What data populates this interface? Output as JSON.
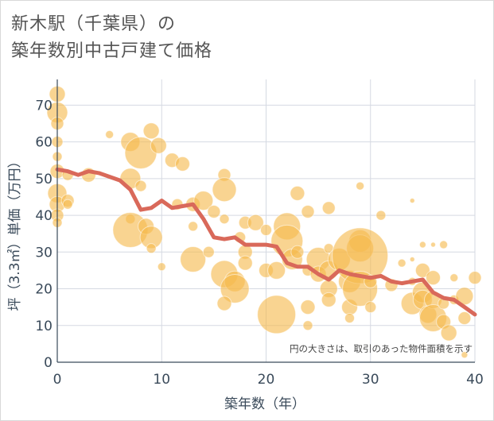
{
  "title": {
    "line1": "新木駅（千葉県）の",
    "line2": "築年数別中古戸建て価格"
  },
  "chart_data": {
    "type": "scatter",
    "xlabel": "築年数（年）",
    "ylabel": "坪（3.3㎡）単価（万円）",
    "xlim": [
      0,
      40
    ],
    "ylim": [
      0,
      77
    ],
    "xticks": [
      0,
      10,
      20,
      30,
      40
    ],
    "yticks": [
      0,
      10,
      20,
      30,
      40,
      50,
      60,
      70
    ],
    "note": "円の大きさは、取引のあった物件面積を示す",
    "colors": {
      "bubble": "#f5b94d",
      "trend": "#d9695a",
      "grid": "#d5d9e2",
      "axis": "#3a4a5a"
    },
    "trend": {
      "x": [
        0,
        1,
        2,
        3,
        4,
        5,
        6,
        7,
        8,
        9,
        10,
        11,
        12,
        13,
        14,
        15,
        16,
        17,
        18,
        19,
        20,
        21,
        22,
        23,
        24,
        25,
        26,
        27,
        28,
        29,
        30,
        31,
        32,
        33,
        34,
        35,
        36,
        37,
        38,
        39,
        40
      ],
      "y": [
        52.5,
        52,
        51,
        52,
        51.5,
        50.5,
        49.5,
        47,
        41.5,
        42,
        44,
        42,
        42.5,
        43,
        39,
        34,
        33.5,
        34,
        32,
        32,
        32,
        31.5,
        27,
        26,
        26,
        24,
        22.5,
        25,
        24,
        23.5,
        23,
        23.5,
        22,
        21.5,
        22,
        22.5,
        19,
        17.5,
        17,
        15,
        13
      ]
    },
    "bubbles": [
      {
        "x": 0,
        "y": 73,
        "r": 10
      },
      {
        "x": 0,
        "y": 68,
        "r": 13
      },
      {
        "x": 0,
        "y": 65,
        "r": 8
      },
      {
        "x": 0,
        "y": 60,
        "r": 7
      },
      {
        "x": 0,
        "y": 56,
        "r": 6
      },
      {
        "x": 0,
        "y": 52,
        "r": 9
      },
      {
        "x": 0,
        "y": 46,
        "r": 12
      },
      {
        "x": 0,
        "y": 43,
        "r": 10
      },
      {
        "x": 0,
        "y": 40,
        "r": 8
      },
      {
        "x": 0,
        "y": 38,
        "r": 6
      },
      {
        "x": 1,
        "y": 51,
        "r": 7
      },
      {
        "x": 1,
        "y": 44,
        "r": 8
      },
      {
        "x": 1,
        "y": 43,
        "r": 6
      },
      {
        "x": 3,
        "y": 51,
        "r": 9
      },
      {
        "x": 5,
        "y": 62,
        "r": 5
      },
      {
        "x": 7,
        "y": 60,
        "r": 12
      },
      {
        "x": 8,
        "y": 57,
        "r": 20
      },
      {
        "x": 7,
        "y": 50,
        "r": 13
      },
      {
        "x": 8,
        "y": 48,
        "r": 7
      },
      {
        "x": 7,
        "y": 39,
        "r": 6
      },
      {
        "x": 7,
        "y": 36,
        "r": 22
      },
      {
        "x": 9,
        "y": 63,
        "r": 10
      },
      {
        "x": 9.7,
        "y": 59,
        "r": 10
      },
      {
        "x": 8.5,
        "y": 37,
        "r": 10
      },
      {
        "x": 9,
        "y": 34,
        "r": 14
      },
      {
        "x": 9,
        "y": 31,
        "r": 6
      },
      {
        "x": 10,
        "y": 26,
        "r": 5
      },
      {
        "x": 11,
        "y": 55,
        "r": 9
      },
      {
        "x": 12,
        "y": 54,
        "r": 9
      },
      {
        "x": 11.5,
        "y": 43,
        "r": 7
      },
      {
        "x": 13,
        "y": 43,
        "r": 9
      },
      {
        "x": 13,
        "y": 37,
        "r": 6
      },
      {
        "x": 13,
        "y": 28,
        "r": 16
      },
      {
        "x": 14,
        "y": 44,
        "r": 12
      },
      {
        "x": 15,
        "y": 41,
        "r": 8
      },
      {
        "x": 14.5,
        "y": 30,
        "r": 7
      },
      {
        "x": 16,
        "y": 51,
        "r": 8
      },
      {
        "x": 16,
        "y": 47,
        "r": 15
      },
      {
        "x": 16,
        "y": 39,
        "r": 6
      },
      {
        "x": 16,
        "y": 24,
        "r": 17
      },
      {
        "x": 17,
        "y": 22,
        "r": 13
      },
      {
        "x": 17,
        "y": 20,
        "r": 18
      },
      {
        "x": 16,
        "y": 16,
        "r": 9
      },
      {
        "x": 17.5,
        "y": 34,
        "r": 7
      },
      {
        "x": 18,
        "y": 38,
        "r": 8
      },
      {
        "x": 18,
        "y": 30,
        "r": 9
      },
      {
        "x": 18,
        "y": 27,
        "r": 9
      },
      {
        "x": 19,
        "y": 38,
        "r": 10
      },
      {
        "x": 20,
        "y": 36,
        "r": 7
      },
      {
        "x": 20,
        "y": 25,
        "r": 9
      },
      {
        "x": 21,
        "y": 25,
        "r": 11
      },
      {
        "x": 21,
        "y": 13,
        "r": 24
      },
      {
        "x": 22,
        "y": 37,
        "r": 17
      },
      {
        "x": 22,
        "y": 33,
        "r": 20
      },
      {
        "x": 22.5,
        "y": 28,
        "r": 13
      },
      {
        "x": 23,
        "y": 46,
        "r": 9
      },
      {
        "x": 23,
        "y": 30,
        "r": 8
      },
      {
        "x": 24,
        "y": 41,
        "r": 8
      },
      {
        "x": 24,
        "y": 25,
        "r": 7
      },
      {
        "x": 24,
        "y": 15,
        "r": 9
      },
      {
        "x": 24,
        "y": 10,
        "r": 6
      },
      {
        "x": 25,
        "y": 28,
        "r": 15
      },
      {
        "x": 25,
        "y": 24,
        "r": 10
      },
      {
        "x": 26,
        "y": 42,
        "r": 8
      },
      {
        "x": 26,
        "y": 31,
        "r": 6
      },
      {
        "x": 26,
        "y": 25,
        "r": 12
      },
      {
        "x": 26,
        "y": 20,
        "r": 11
      },
      {
        "x": 26,
        "y": 17,
        "r": 9
      },
      {
        "x": 27,
        "y": 28,
        "r": 14
      },
      {
        "x": 28,
        "y": 22,
        "r": 14
      },
      {
        "x": 28,
        "y": 15,
        "r": 10
      },
      {
        "x": 28,
        "y": 12,
        "r": 6
      },
      {
        "x": 29,
        "y": 48,
        "r": 5
      },
      {
        "x": 29,
        "y": 33,
        "r": 14
      },
      {
        "x": 29,
        "y": 31,
        "r": 17
      },
      {
        "x": 29,
        "y": 29,
        "r": 35
      },
      {
        "x": 29,
        "y": 20,
        "r": 22
      },
      {
        "x": 30,
        "y": 22,
        "r": 8
      },
      {
        "x": 30,
        "y": 15,
        "r": 7
      },
      {
        "x": 31,
        "y": 40,
        "r": 6
      },
      {
        "x": 32,
        "y": 21,
        "r": 8
      },
      {
        "x": 33,
        "y": 27,
        "r": 5
      },
      {
        "x": 34,
        "y": 44,
        "r": 3
      },
      {
        "x": 34,
        "y": 28,
        "r": 3
      },
      {
        "x": 34,
        "y": 22,
        "r": 5
      },
      {
        "x": 34,
        "y": 16,
        "r": 14
      },
      {
        "x": 35,
        "y": 32,
        "r": 4
      },
      {
        "x": 35,
        "y": 25,
        "r": 9
      },
      {
        "x": 35,
        "y": 19,
        "r": 13
      },
      {
        "x": 35,
        "y": 17,
        "r": 12
      },
      {
        "x": 35.5,
        "y": 13,
        "r": 11
      },
      {
        "x": 36,
        "y": 32,
        "r": 3
      },
      {
        "x": 36,
        "y": 23,
        "r": 9
      },
      {
        "x": 36,
        "y": 17,
        "r": 11
      },
      {
        "x": 36,
        "y": 12,
        "r": 17
      },
      {
        "x": 37,
        "y": 32,
        "r": 5
      },
      {
        "x": 37,
        "y": 16,
        "r": 7
      },
      {
        "x": 37,
        "y": 11,
        "r": 9
      },
      {
        "x": 37.5,
        "y": 8,
        "r": 10
      },
      {
        "x": 38,
        "y": 23,
        "r": 5
      },
      {
        "x": 38,
        "y": 17,
        "r": 6
      },
      {
        "x": 39,
        "y": 18,
        "r": 11
      },
      {
        "x": 39,
        "y": 12,
        "r": 8
      },
      {
        "x": 39,
        "y": 2,
        "r": 4
      },
      {
        "x": 40,
        "y": 23,
        "r": 8
      }
    ]
  }
}
